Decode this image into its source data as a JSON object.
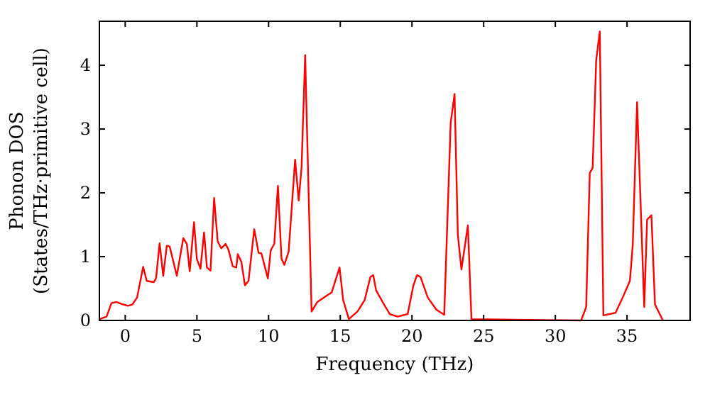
{
  "chart_data": {
    "type": "line",
    "xlabel": "Frequency (THz)",
    "ylabel": "Phonon DOS\n(States/THz·primitive cell)",
    "xlim": [
      -1.8,
      39.4
    ],
    "ylim": [
      0,
      4.69
    ],
    "xticks": [
      0,
      5,
      10,
      15,
      20,
      25,
      30,
      35
    ],
    "yticks": [
      0,
      1,
      2,
      3,
      4
    ],
    "grid": false,
    "marker": "none",
    "line_style": "solid",
    "series": [
      {
        "color": "#ff0000",
        "x": [
          -1.8,
          -1.3,
          -0.96,
          -0.63,
          -0.13,
          0.2,
          0.5,
          0.83,
          1.25,
          1.5,
          2.0,
          2.15,
          2.4,
          2.65,
          2.9,
          3.1,
          3.6,
          4.05,
          4.3,
          4.5,
          4.8,
          5.0,
          5.25,
          5.5,
          5.7,
          5.95,
          6.2,
          6.45,
          6.7,
          7.0,
          7.2,
          7.5,
          7.75,
          7.85,
          8.1,
          8.35,
          8.6,
          9.0,
          9.3,
          9.5,
          9.95,
          10.15,
          10.4,
          10.65,
          10.9,
          11.1,
          11.4,
          11.85,
          12.1,
          12.3,
          12.55,
          13.0,
          13.4,
          14.0,
          14.4,
          14.95,
          15.2,
          15.6,
          16.2,
          16.7,
          17.1,
          17.3,
          17.5,
          18.0,
          18.45,
          19.0,
          19.7,
          20.1,
          20.35,
          20.6,
          21.1,
          21.7,
          22.25,
          22.7,
          22.97,
          23.2,
          23.45,
          23.9,
          24.15,
          31.8,
          32.15,
          32.4,
          32.6,
          32.85,
          33.1,
          33.35,
          34.2,
          34.7,
          35.2,
          35.4,
          35.7,
          36.2,
          36.4,
          36.7,
          36.95,
          37.5
        ],
        "values": [
          0.02,
          0.06,
          0.27,
          0.29,
          0.25,
          0.23,
          0.25,
          0.36,
          0.84,
          0.62,
          0.6,
          0.66,
          1.21,
          0.7,
          1.17,
          1.16,
          0.7,
          1.29,
          1.2,
          0.77,
          1.54,
          0.96,
          0.81,
          1.38,
          0.83,
          0.78,
          1.92,
          1.24,
          1.13,
          1.2,
          1.11,
          0.85,
          0.83,
          1.04,
          0.92,
          0.55,
          0.62,
          1.43,
          1.06,
          1.05,
          0.66,
          1.1,
          1.2,
          2.11,
          0.97,
          0.87,
          1.08,
          2.52,
          1.88,
          2.4,
          4.16,
          0.14,
          0.29,
          0.38,
          0.44,
          0.83,
          0.32,
          0.02,
          0.14,
          0.32,
          0.68,
          0.71,
          0.47,
          0.27,
          0.1,
          0.06,
          0.1,
          0.55,
          0.71,
          0.68,
          0.36,
          0.17,
          0.09,
          3.1,
          3.55,
          1.34,
          0.8,
          1.49,
          0.02,
          0,
          0.21,
          2.31,
          2.39,
          4.08,
          4.53,
          0.08,
          0.12,
          0.36,
          0.62,
          1.19,
          3.42,
          0.21,
          1.58,
          1.65,
          0.25,
          0
        ]
      }
    ]
  }
}
